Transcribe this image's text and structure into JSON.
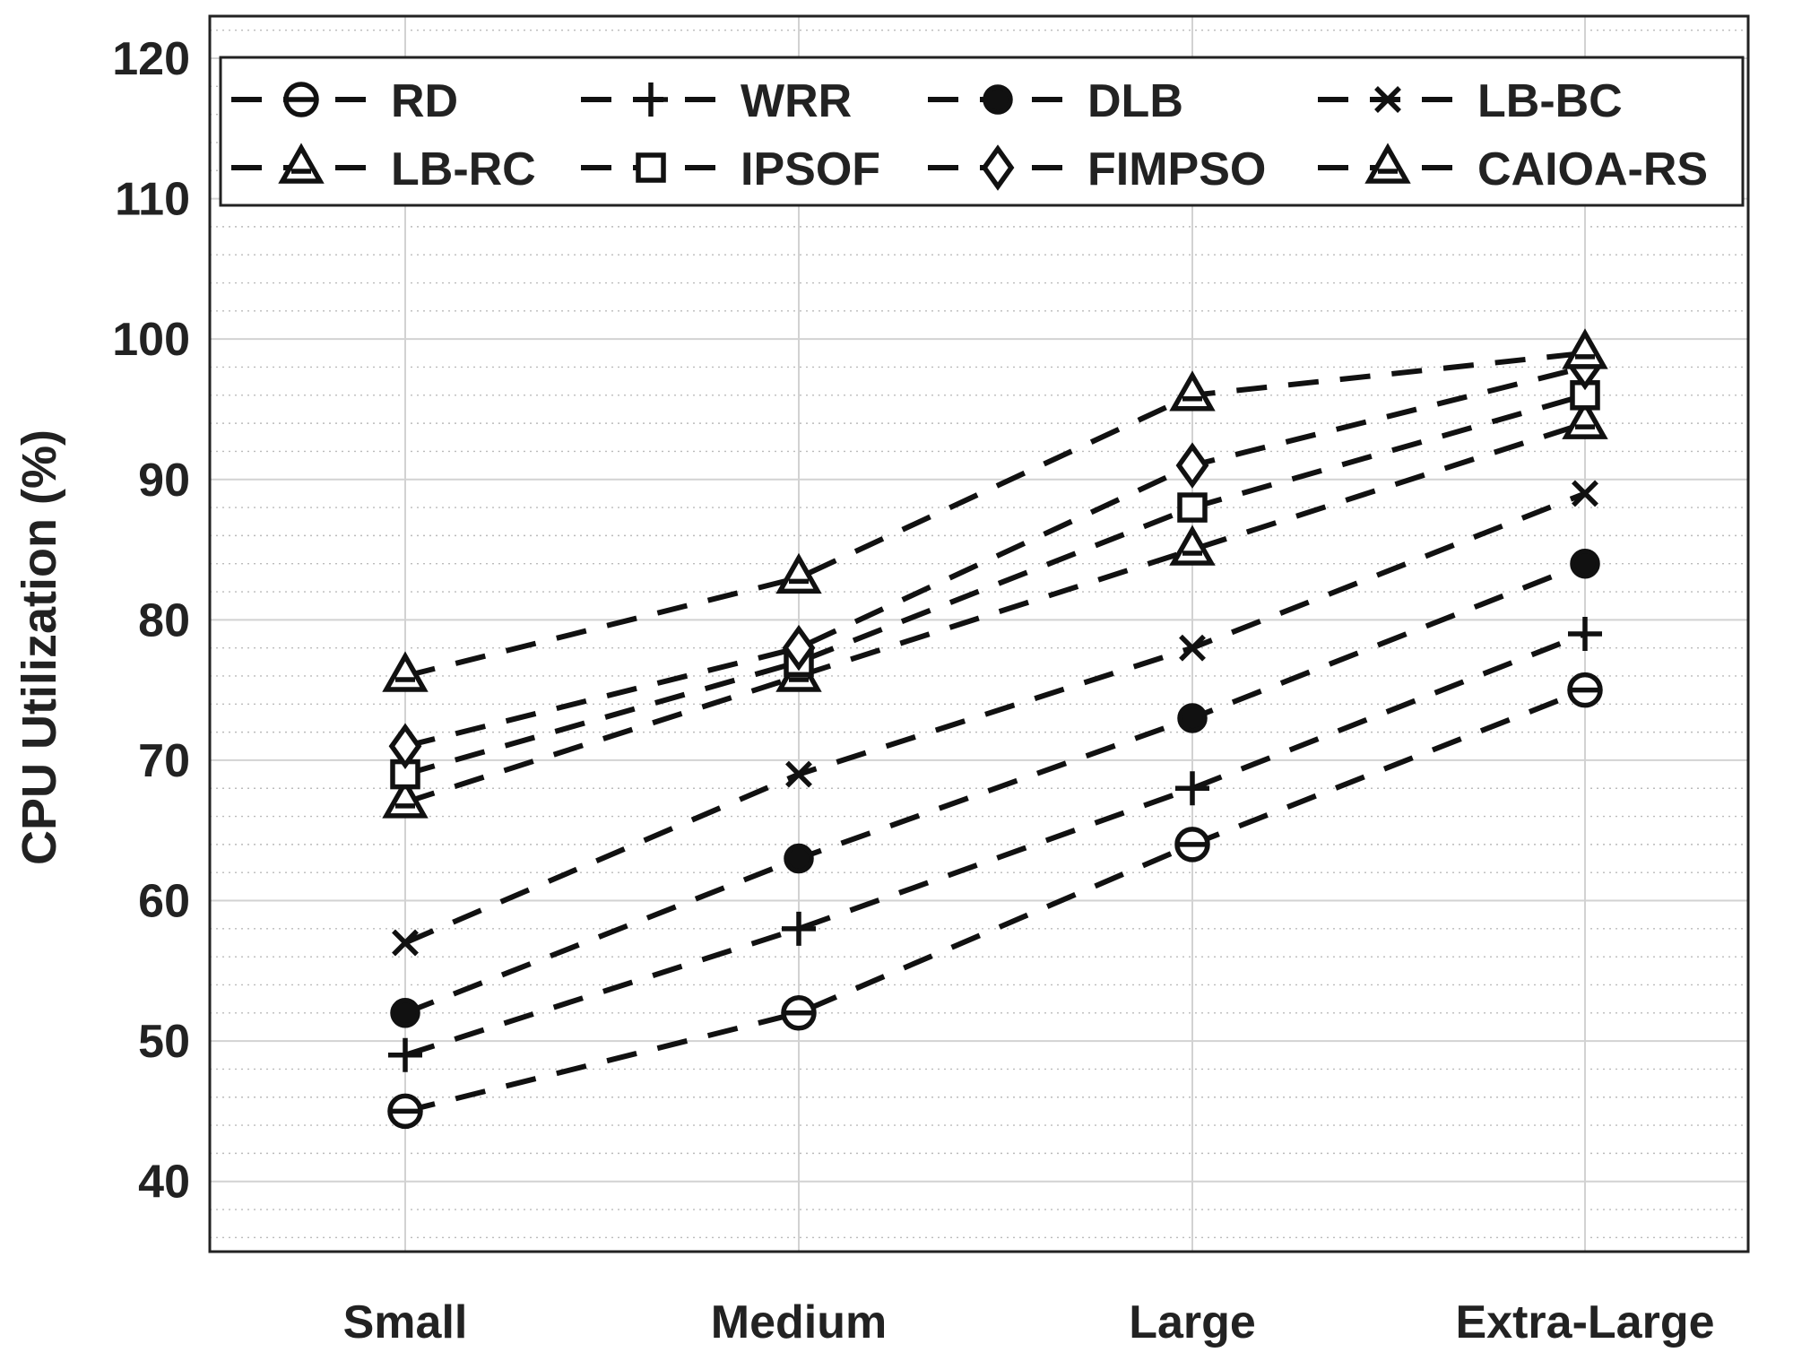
{
  "chart_data": {
    "type": "line",
    "title": "",
    "xlabel": "",
    "ylabel": "CPU Utilization (%)",
    "categories": [
      "Small",
      "Medium",
      "Large",
      "Extra-Large"
    ],
    "ylim": [
      35,
      123
    ],
    "yticks": [
      40,
      50,
      60,
      70,
      80,
      90,
      100,
      110,
      120
    ],
    "grid": true,
    "minor_grid": true,
    "legend_position": "top",
    "line_style": "dashed",
    "line_color": "#111111",
    "series": [
      {
        "name": "RD",
        "marker": "circle",
        "values": [
          45,
          52,
          64,
          75
        ]
      },
      {
        "name": "WRR",
        "marker": "plus",
        "values": [
          49,
          58,
          68,
          79
        ]
      },
      {
        "name": "DLB",
        "marker": "filled-circle",
        "values": [
          52,
          63,
          73,
          84
        ]
      },
      {
        "name": "LB-BC",
        "marker": "x",
        "values": [
          57,
          69,
          78,
          89
        ]
      },
      {
        "name": "LB-RC",
        "marker": "triangle",
        "values": [
          67,
          76,
          85,
          94
        ]
      },
      {
        "name": "IPSOF",
        "marker": "square",
        "values": [
          69,
          77,
          88,
          96
        ]
      },
      {
        "name": "FIMPSO",
        "marker": "diamond",
        "values": [
          71,
          78,
          91,
          98
        ]
      },
      {
        "name": "CAIOA-RS",
        "marker": "triangle",
        "values": [
          76,
          83,
          96,
          99
        ]
      }
    ]
  }
}
